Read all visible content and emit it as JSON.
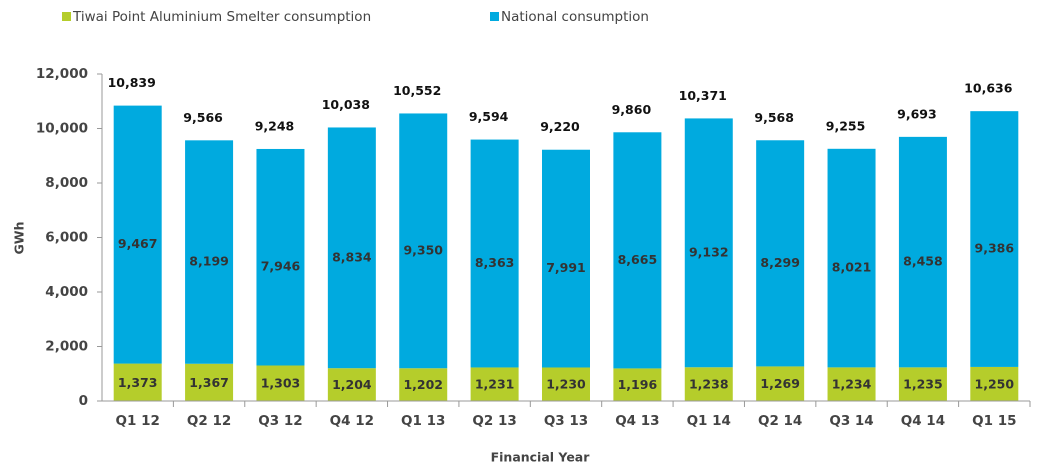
{
  "chart_data": {
    "type": "stacked_bar",
    "categories": [
      "Q1 12",
      "Q2 12",
      "Q3 12",
      "Q4 12",
      "Q1 13",
      "Q2 13",
      "Q3 13",
      "Q4 13",
      "Q1 14",
      "Q2 14",
      "Q3 14",
      "Q4 14",
      "Q1 15"
    ],
    "series": [
      {
        "name": "Tiwai Point Aluminium Smelter consumption",
        "color": "#b5cd2b",
        "values": [
          1373,
          1367,
          1303,
          1204,
          1202,
          1231,
          1230,
          1196,
          1238,
          1269,
          1234,
          1235,
          1250
        ],
        "value_labels": [
          "1,373",
          "1,367",
          "1,303",
          "1,204",
          "1,202",
          "1,231",
          "1,230",
          "1,196",
          "1,238",
          "1,269",
          "1,234",
          "1,235",
          "1,250"
        ]
      },
      {
        "name": "National consumption",
        "color": "#00aadf",
        "values": [
          9467,
          8199,
          7946,
          8834,
          9350,
          8363,
          7991,
          8665,
          9132,
          8299,
          8021,
          8458,
          9386
        ],
        "value_labels": [
          "9,467",
          "8,199",
          "7,946",
          "8,834",
          "9,350",
          "8,363",
          "7,991",
          "8,665",
          "9,132",
          "8,299",
          "8,021",
          "8,458",
          "9,386"
        ]
      }
    ],
    "total_labels": [
      "10,839",
      "9,566",
      "9,248",
      "10,038",
      "10,552",
      "9,594",
      "9,220",
      "9,860",
      "10,371",
      "9,568",
      "9,255",
      "9,693",
      "10,636"
    ],
    "ylim": [
      0,
      12000
    ],
    "yticks": [
      0,
      {
        "value": 2000,
        "label": "2,000"
      },
      {
        "value": 4000,
        "label": "4,000"
      },
      {
        "value": 6000,
        "label": "6,000"
      },
      {
        "value": 8000,
        "label": "8,000"
      },
      {
        "value": 10000,
        "label": "10,000"
      },
      {
        "value": 12000,
        "label": "12,000"
      }
    ],
    "y_label": "GWh",
    "x_label": "Financial Year",
    "legend": "top-left"
  }
}
